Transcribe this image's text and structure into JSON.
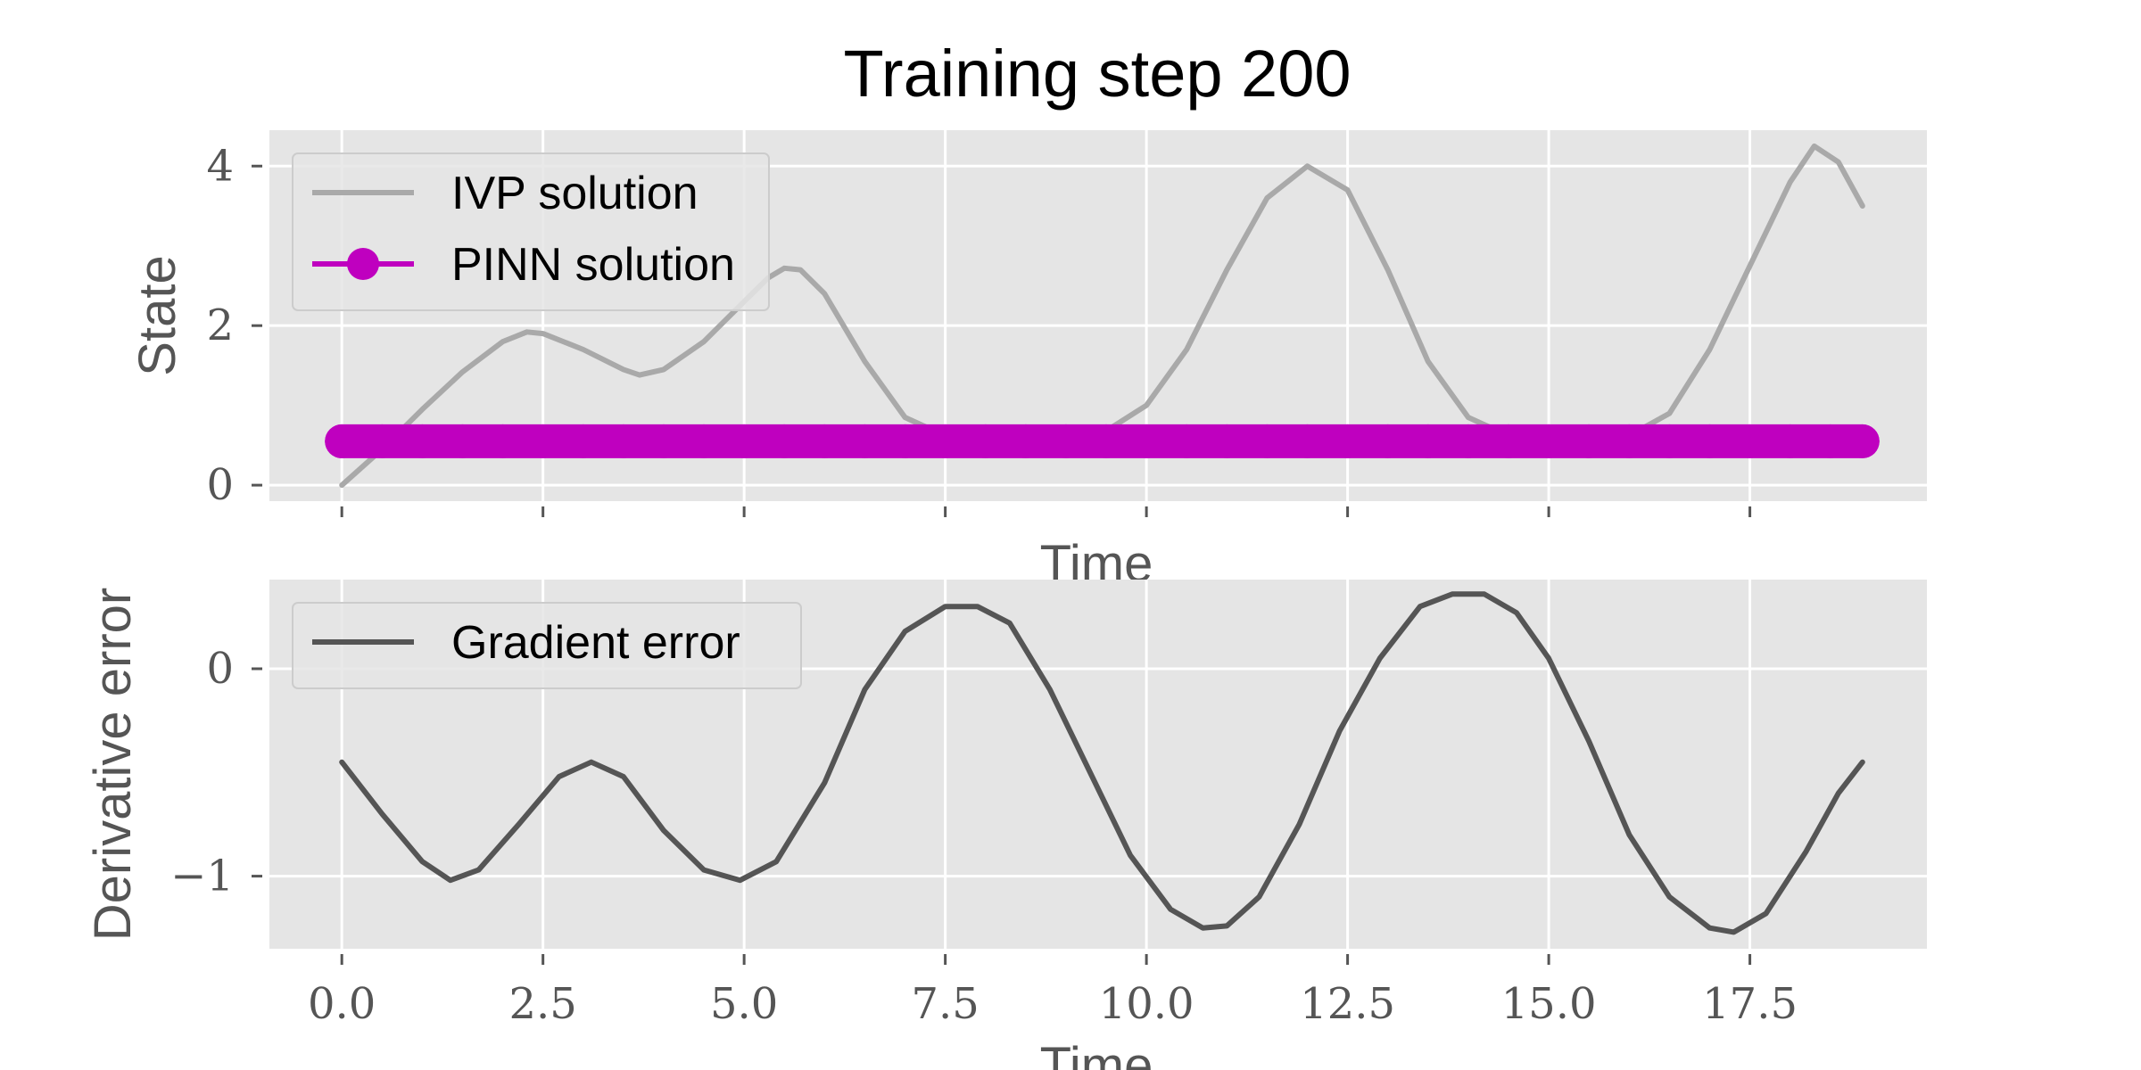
{
  "figure": {
    "title": "Training step 200"
  },
  "chart_data": [
    {
      "type": "line",
      "xlabel": "Time",
      "ylabel": "State",
      "xlim": [
        -0.9,
        19.7
      ],
      "ylim": [
        -0.2,
        4.45
      ],
      "xticks": [
        0.0,
        2.5,
        5.0,
        7.5,
        10.0,
        12.5,
        15.0,
        17.5
      ],
      "xtick_labels_visible": false,
      "yticks": [
        0,
        2,
        4
      ],
      "ytick_labels": [
        "0",
        "2",
        "4"
      ],
      "grid": true,
      "legend": "top-left",
      "series": [
        {
          "name": "IVP solution",
          "color": "#a9a9a9",
          "x": [
            0.0,
            0.5,
            1.0,
            1.5,
            2.0,
            2.3,
            2.5,
            3.0,
            3.5,
            3.7,
            4.0,
            4.5,
            5.0,
            5.3,
            5.5,
            5.7,
            6.0,
            6.5,
            7.0,
            7.5,
            8.0,
            8.5,
            9.0,
            9.5,
            10.0,
            10.5,
            11.0,
            11.5,
            12.0,
            12.5,
            13.0,
            13.5,
            14.0,
            14.5,
            15.0,
            15.5,
            16.0,
            16.5,
            17.0,
            17.5,
            18.0,
            18.3,
            18.6,
            18.9
          ],
          "values": [
            0.0,
            0.45,
            0.95,
            1.42,
            1.8,
            1.92,
            1.9,
            1.7,
            1.45,
            1.38,
            1.45,
            1.8,
            2.3,
            2.6,
            2.72,
            2.7,
            2.4,
            1.55,
            0.85,
            0.62,
            0.58,
            0.6,
            0.62,
            0.68,
            1.0,
            1.7,
            2.7,
            3.6,
            4.0,
            3.7,
            2.7,
            1.55,
            0.85,
            0.62,
            0.58,
            0.58,
            0.62,
            0.9,
            1.7,
            2.75,
            3.8,
            4.25,
            4.05,
            3.5
          ]
        },
        {
          "name": "PINN solution",
          "color": "#bf00bf",
          "marker": "circle",
          "x": [
            0.0,
            0.5,
            1.0,
            1.5,
            2.0,
            2.5,
            3.0,
            3.5,
            4.0,
            4.5,
            5.0,
            5.5,
            6.0,
            6.5,
            7.0,
            7.5,
            8.0,
            8.5,
            9.0,
            9.5,
            10.0,
            10.5,
            11.0,
            11.5,
            12.0,
            12.5,
            13.0,
            13.5,
            14.0,
            14.5,
            15.0,
            15.5,
            16.0,
            16.5,
            17.0,
            17.5,
            18.0,
            18.5,
            18.9
          ],
          "values": [
            0.55,
            0.55,
            0.55,
            0.55,
            0.55,
            0.55,
            0.55,
            0.55,
            0.55,
            0.55,
            0.55,
            0.55,
            0.55,
            0.55,
            0.55,
            0.55,
            0.55,
            0.55,
            0.55,
            0.55,
            0.55,
            0.55,
            0.55,
            0.55,
            0.55,
            0.55,
            0.55,
            0.55,
            0.55,
            0.55,
            0.55,
            0.55,
            0.55,
            0.55,
            0.55,
            0.55,
            0.55,
            0.55,
            0.55
          ]
        }
      ]
    },
    {
      "type": "line",
      "xlabel": "Time",
      "ylabel": "Derivative error",
      "xlim": [
        -0.9,
        19.7
      ],
      "ylim": [
        -1.35,
        0.43
      ],
      "xticks": [
        0.0,
        2.5,
        5.0,
        7.5,
        10.0,
        12.5,
        15.0,
        17.5
      ],
      "xtick_labels": [
        "0.0",
        "2.5",
        "5.0",
        "7.5",
        "10.0",
        "12.5",
        "15.0",
        "17.5"
      ],
      "yticks": [
        -1,
        0
      ],
      "ytick_labels": [
        "−1",
        "0"
      ],
      "grid": true,
      "legend": "top-left",
      "series": [
        {
          "name": "Gradient error",
          "color": "#555555",
          "x": [
            0.0,
            0.5,
            1.0,
            1.35,
            1.7,
            2.2,
            2.7,
            3.1,
            3.5,
            4.0,
            4.5,
            4.95,
            5.4,
            6.0,
            6.5,
            7.0,
            7.5,
            7.9,
            8.3,
            8.8,
            9.3,
            9.8,
            10.3,
            10.7,
            11.0,
            11.4,
            11.9,
            12.4,
            12.9,
            13.4,
            13.8,
            14.2,
            14.6,
            15.0,
            15.5,
            16.0,
            16.5,
            17.0,
            17.3,
            17.7,
            18.2,
            18.6,
            18.9
          ],
          "values": [
            -0.45,
            -0.7,
            -0.93,
            -1.02,
            -0.97,
            -0.75,
            -0.52,
            -0.45,
            -0.52,
            -0.78,
            -0.97,
            -1.02,
            -0.93,
            -0.55,
            -0.1,
            0.18,
            0.3,
            0.3,
            0.22,
            -0.1,
            -0.5,
            -0.9,
            -1.16,
            -1.25,
            -1.24,
            -1.1,
            -0.75,
            -0.3,
            0.05,
            0.3,
            0.36,
            0.36,
            0.27,
            0.05,
            -0.35,
            -0.8,
            -1.1,
            -1.25,
            -1.27,
            -1.18,
            -0.88,
            -0.6,
            -0.45
          ]
        }
      ]
    }
  ]
}
